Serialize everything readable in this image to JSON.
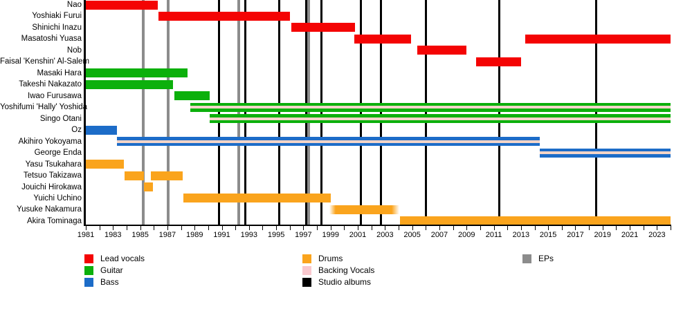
{
  "chart_data": {
    "type": "bar",
    "subtype": "band-member-timeline-gantt",
    "title": "",
    "x_axis": {
      "min": 1981,
      "max": 2024.05,
      "tick_step": 2,
      "minor_step": 1,
      "tick_labels": [
        "1981",
        "1983",
        "1985",
        "1987",
        "1989",
        "1991",
        "1993",
        "1995",
        "1997",
        "1999",
        "2001",
        "2003",
        "2005",
        "2007",
        "2009",
        "2011",
        "2013",
        "2015",
        "2017",
        "2019",
        "2021",
        "2023"
      ]
    },
    "members": [
      {
        "name": "Nao",
        "role": "lead_vocals",
        "backing": false,
        "periods": [
          {
            "start": 1981.0,
            "end": 1986.3
          }
        ]
      },
      {
        "name": "Yoshiaki Furui",
        "role": "lead_vocals",
        "backing": false,
        "periods": [
          {
            "start": 1986.35,
            "end": 1996.0
          }
        ]
      },
      {
        "name": "Shinichi Inazu",
        "role": "lead_vocals",
        "backing": false,
        "periods": [
          {
            "start": 1996.1,
            "end": 2000.8
          }
        ]
      },
      {
        "name": "Masatoshi Yuasa",
        "role": "lead_vocals",
        "backing": false,
        "periods": [
          {
            "start": 2000.75,
            "end": 2004.9
          },
          {
            "start": 2013.3,
            "end": 2024.0
          }
        ]
      },
      {
        "name": "Nob",
        "role": "lead_vocals",
        "backing": false,
        "periods": [
          {
            "start": 2005.4,
            "end": 2009.0
          }
        ]
      },
      {
        "name": "Faisal 'Kenshin' Al-Salem",
        "role": "lead_vocals",
        "backing": false,
        "periods": [
          {
            "start": 2009.7,
            "end": 2013.0
          }
        ]
      },
      {
        "name": "Masaki Hara",
        "role": "guitar",
        "backing": false,
        "periods": [
          {
            "start": 1981.0,
            "end": 1988.5
          }
        ]
      },
      {
        "name": "Takeshi Nakazato",
        "role": "guitar",
        "backing": false,
        "periods": [
          {
            "start": 1981.0,
            "end": 1987.4
          }
        ]
      },
      {
        "name": "Iwao Furusawa",
        "role": "guitar",
        "backing": false,
        "periods": [
          {
            "start": 1987.5,
            "end": 1990.1
          }
        ]
      },
      {
        "name": "Yoshifumi 'Hally' Yoshida",
        "role": "guitar",
        "backing": true,
        "periods": [
          {
            "start": 1988.7,
            "end": 2024.0
          }
        ]
      },
      {
        "name": "Singo Otani",
        "role": "guitar",
        "backing": true,
        "periods": [
          {
            "start": 1990.1,
            "end": 2024.0
          }
        ]
      },
      {
        "name": "Oz",
        "role": "bass",
        "backing": false,
        "periods": [
          {
            "start": 1981.0,
            "end": 1983.3
          }
        ]
      },
      {
        "name": "Akihiro Yokoyama",
        "role": "bass",
        "backing": true,
        "periods": [
          {
            "start": 1983.3,
            "end": 2014.4
          }
        ]
      },
      {
        "name": "George Enda",
        "role": "bass",
        "backing": true,
        "periods": [
          {
            "start": 2014.4,
            "end": 2024.0
          }
        ]
      },
      {
        "name": "Yasu Tsukahara",
        "role": "drums",
        "backing": false,
        "periods": [
          {
            "start": 1981.0,
            "end": 1983.8
          }
        ]
      },
      {
        "name": "Tetsuo Takizawa",
        "role": "drums",
        "backing": false,
        "periods": [
          {
            "start": 1983.85,
            "end": 1985.3
          },
          {
            "start": 1985.8,
            "end": 1988.1
          }
        ]
      },
      {
        "name": "Jouichi Hirokawa",
        "role": "drums",
        "backing": false,
        "periods": [
          {
            "start": 1985.25,
            "end": 1985.95
          }
        ]
      },
      {
        "name": "Yuichi Uchino",
        "role": "drums",
        "backing": false,
        "periods": [
          {
            "start": 1988.2,
            "end": 1999.0
          }
        ]
      },
      {
        "name": "Yusuke Nakamura",
        "role": "drums",
        "backing": false,
        "periods": [
          {
            "start": 1998.9,
            "end": 2004.05,
            "fuzzy": true
          }
        ]
      },
      {
        "name": "Akira Tominaga",
        "role": "drums",
        "backing": false,
        "periods": [
          {
            "start": 2004.1,
            "end": 2024.0
          }
        ]
      }
    ],
    "studio_albums_years": [
      1990.8,
      1992.75,
      1995.2,
      1997.2,
      1998.35,
      2001.25,
      2002.7,
      2006.0,
      2011.4,
      2018.55
    ],
    "eps_years": [
      1985.2,
      1987.05,
      1992.25,
      1997.4
    ],
    "legend_position": "bottom"
  },
  "colors": {
    "lead_vocals": "#f40404",
    "guitar": "#0cb00c",
    "bass": "#1c6cc8",
    "drums": "#faa41d",
    "backing_stripe": "#f3d5c8",
    "backing_legend": "#f9c8ce",
    "album_line": "#000000",
    "ep_line": "#8c8c8c"
  },
  "legend": {
    "items": [
      {
        "label": "Lead vocals",
        "color_key": "lead_vocals",
        "col": 0,
        "row": 0
      },
      {
        "label": "Guitar",
        "color_key": "guitar",
        "col": 0,
        "row": 1
      },
      {
        "label": "Bass",
        "color_key": "bass",
        "col": 0,
        "row": 2
      },
      {
        "label": "Drums",
        "color_key": "drums",
        "col": 1,
        "row": 0
      },
      {
        "label": "Backing Vocals",
        "color_key": "backing_legend",
        "col": 1,
        "row": 1
      },
      {
        "label": "Studio albums",
        "color_key": "album_line",
        "col": 1,
        "row": 2
      },
      {
        "label": "EPs",
        "color_key": "ep_line",
        "col": 2,
        "row": 0
      }
    ]
  }
}
